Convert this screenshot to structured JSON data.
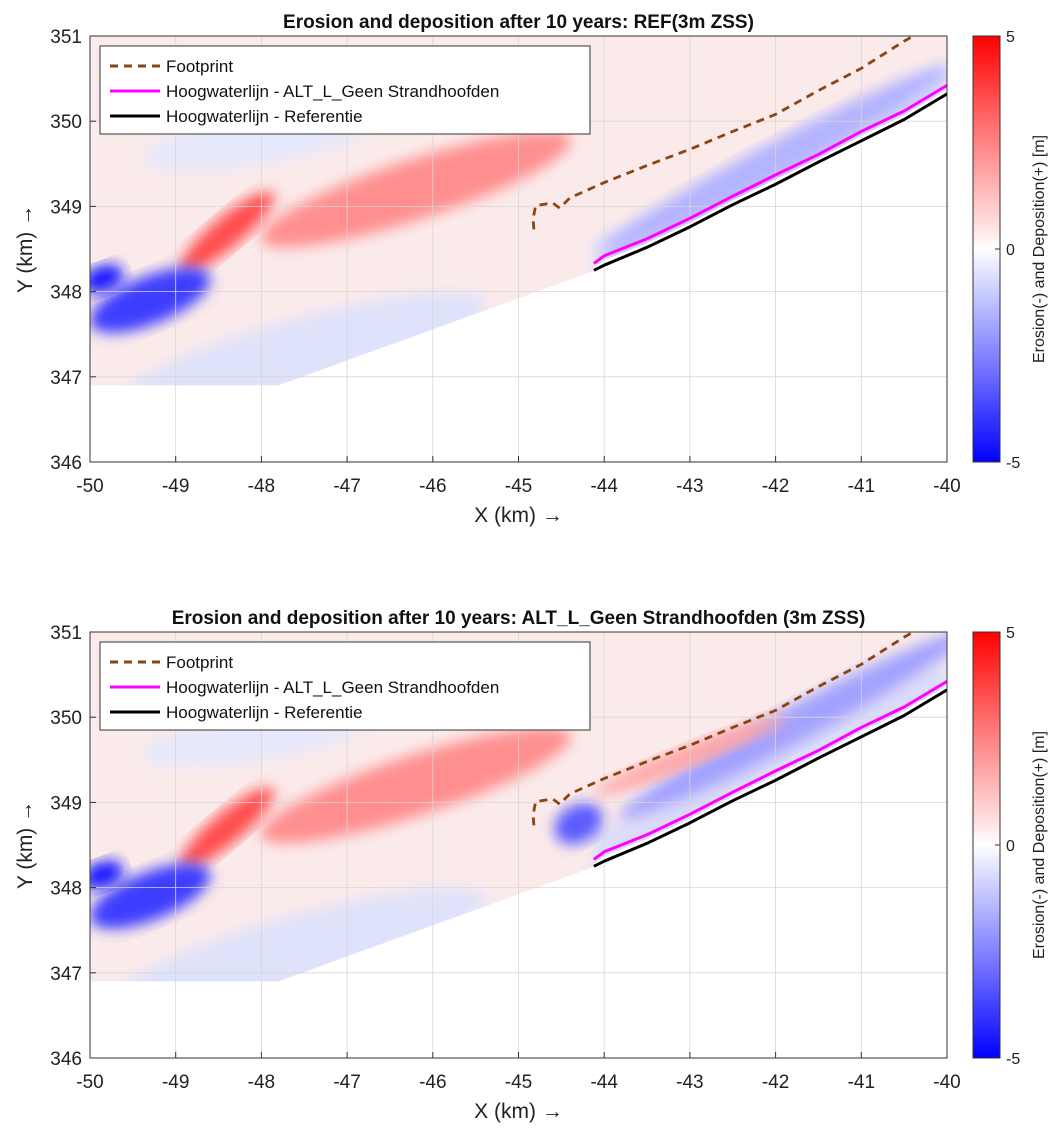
{
  "chart_data": [
    {
      "type": "heatmap",
      "title": "Erosion and deposition after 10 years: REF(3m ZSS)",
      "xlabel": "X (km) →",
      "ylabel": "Y (km) →",
      "xlim": [
        -50,
        -40
      ],
      "ylim": [
        346,
        351
      ],
      "xticks": [
        "-50",
        "-49",
        "-48",
        "-47",
        "-46",
        "-45",
        "-44",
        "-43",
        "-42",
        "-41",
        "-40"
      ],
      "yticks": [
        "346",
        "347",
        "348",
        "349",
        "350",
        "351"
      ],
      "grid": true,
      "legend_placement": "top-left",
      "colorbar": {
        "label": "Erosion(-) and Deposition(+) [m]",
        "range": [
          -5,
          5
        ],
        "ticks": [
          "5",
          "0",
          "-5"
        ],
        "colormap": "blue-white-red"
      },
      "series": [
        {
          "name": "Footprint",
          "style": "dashed",
          "color": "#8B4513",
          "x": [
            -44.82,
            -44.83,
            -44.8,
            -44.6,
            -44.52,
            -44.4,
            -44.0,
            -43.5,
            -43.0,
            -42.5,
            -42.0,
            -41.5,
            -41.0,
            -40.5,
            -40.3
          ],
          "y": [
            348.73,
            348.85,
            349.01,
            349.04,
            348.98,
            349.1,
            349.28,
            349.48,
            349.67,
            349.88,
            350.08,
            350.36,
            350.62,
            350.94,
            351.05
          ]
        },
        {
          "name": "Hoogwaterlijn - ALT_L_Geen Strandhoofden",
          "style": "solid",
          "color": "#FF00FF",
          "x": [
            -44.12,
            -44.0,
            -43.5,
            -43.0,
            -42.5,
            -42.0,
            -41.5,
            -41.0,
            -40.5,
            -40.0
          ],
          "y": [
            348.33,
            348.42,
            348.62,
            348.86,
            349.12,
            349.37,
            349.61,
            349.88,
            350.12,
            350.42
          ]
        },
        {
          "name": "Hoogwaterlijn - Referentie",
          "style": "solid",
          "color": "#000000",
          "x": [
            -44.12,
            -44.0,
            -43.5,
            -43.0,
            -42.5,
            -42.0,
            -41.5,
            -41.0,
            -40.5,
            -40.0
          ],
          "y": [
            348.25,
            348.31,
            348.52,
            348.76,
            349.02,
            349.26,
            349.52,
            349.77,
            350.02,
            350.32
          ]
        }
      ],
      "field_features": [
        {
          "kind": "deposition",
          "value": 2.2,
          "x": -46.2,
          "y": 349.2,
          "rx": 1.9,
          "ry": 0.35,
          "rot": -18
        },
        {
          "kind": "deposition",
          "value": 3.5,
          "x": -48.4,
          "y": 348.7,
          "rx": 0.7,
          "ry": 0.18,
          "rot": -40
        },
        {
          "kind": "erosion",
          "value": -3.8,
          "x": -49.3,
          "y": 347.9,
          "rx": 0.75,
          "ry": 0.28,
          "rot": -22
        },
        {
          "kind": "erosion",
          "value": -4.5,
          "x": -49.85,
          "y": 348.15,
          "rx": 0.25,
          "ry": 0.15,
          "rot": -20
        },
        {
          "kind": "erosion",
          "value": -1.5,
          "x": -42.0,
          "y": 349.55,
          "rx": 2.3,
          "ry": 0.2,
          "rot": -28
        }
      ]
    },
    {
      "type": "heatmap",
      "title": "Erosion and deposition after 10 years: ALT_L_Geen Strandhoofden (3m ZSS)",
      "xlabel": "X (km) →",
      "ylabel": "Y (km) →",
      "xlim": [
        -50,
        -40
      ],
      "ylim": [
        346,
        351
      ],
      "xticks": [
        "-50",
        "-49",
        "-48",
        "-47",
        "-46",
        "-45",
        "-44",
        "-43",
        "-42",
        "-41",
        "-40"
      ],
      "yticks": [
        "346",
        "347",
        "348",
        "349",
        "350",
        "351"
      ],
      "grid": true,
      "legend_placement": "top-left",
      "colorbar": {
        "label": "Erosion(-) and Deposition(+) [m]",
        "range": [
          -5,
          5
        ],
        "ticks": [
          "5",
          "0",
          "-5"
        ],
        "colormap": "blue-white-red"
      },
      "series": [
        {
          "name": "Footprint",
          "style": "dashed",
          "color": "#8B4513",
          "x": [
            -44.82,
            -44.83,
            -44.8,
            -44.6,
            -44.52,
            -44.4,
            -44.0,
            -43.5,
            -43.0,
            -42.5,
            -42.0,
            -41.5,
            -41.0,
            -40.5,
            -40.3
          ],
          "y": [
            348.73,
            348.85,
            349.01,
            349.04,
            348.98,
            349.1,
            349.28,
            349.48,
            349.67,
            349.88,
            350.08,
            350.36,
            350.62,
            350.94,
            351.05
          ]
        },
        {
          "name": "Hoogwaterlijn - ALT_L_Geen Strandhoofden",
          "style": "solid",
          "color": "#FF00FF",
          "x": [
            -44.12,
            -44.0,
            -43.5,
            -43.0,
            -42.5,
            -42.0,
            -41.5,
            -41.0,
            -40.5,
            -40.0
          ],
          "y": [
            348.33,
            348.42,
            348.62,
            348.86,
            349.12,
            349.37,
            349.61,
            349.88,
            350.12,
            350.42
          ]
        },
        {
          "name": "Hoogwaterlijn - Referentie",
          "style": "solid",
          "color": "#000000",
          "x": [
            -44.12,
            -44.0,
            -43.5,
            -43.0,
            -42.5,
            -42.0,
            -41.5,
            -41.0,
            -40.5,
            -40.0
          ],
          "y": [
            348.25,
            348.31,
            348.52,
            348.76,
            349.02,
            349.26,
            349.52,
            349.77,
            350.02,
            350.32
          ]
        }
      ],
      "field_features": [
        {
          "kind": "deposition",
          "value": 2.2,
          "x": -46.2,
          "y": 349.2,
          "rx": 1.9,
          "ry": 0.35,
          "rot": -18
        },
        {
          "kind": "deposition",
          "value": 3.5,
          "x": -48.4,
          "y": 348.7,
          "rx": 0.7,
          "ry": 0.18,
          "rot": -40
        },
        {
          "kind": "erosion",
          "value": -3.8,
          "x": -49.3,
          "y": 347.9,
          "rx": 0.75,
          "ry": 0.28,
          "rot": -22
        },
        {
          "kind": "erosion",
          "value": -4.5,
          "x": -49.85,
          "y": 348.15,
          "rx": 0.25,
          "ry": 0.15,
          "rot": -20
        },
        {
          "kind": "erosion",
          "value": -1.8,
          "x": -41.8,
          "y": 349.9,
          "rx": 2.3,
          "ry": 0.22,
          "rot": -28
        },
        {
          "kind": "erosion",
          "value": -3.2,
          "x": -44.3,
          "y": 348.75,
          "rx": 0.3,
          "ry": 0.22,
          "rot": -30
        },
        {
          "kind": "deposition",
          "value": 1.8,
          "x": -43.0,
          "y": 349.55,
          "rx": 1.2,
          "ry": 0.12,
          "rot": -22
        }
      ]
    }
  ]
}
